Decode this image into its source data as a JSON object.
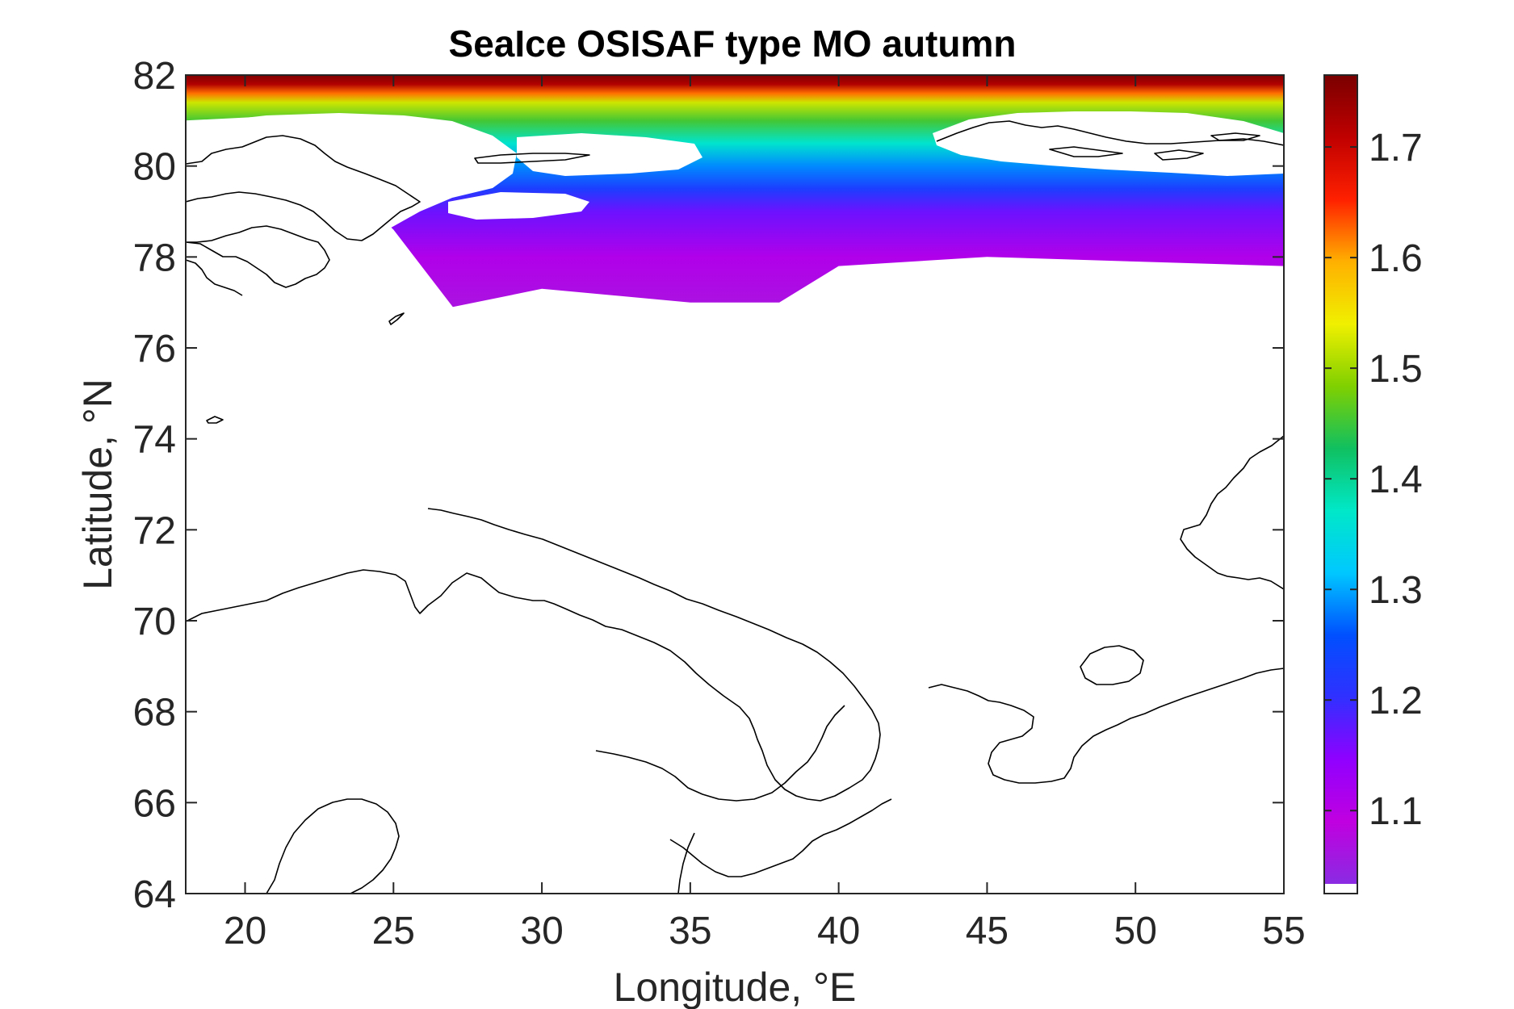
{
  "chart_data": {
    "type": "heatmap",
    "title": "SeaIce OSISAF type MO autumn",
    "xlabel": "Longitude, °E",
    "ylabel": "Latitude, °N",
    "xlim": [
      18,
      55
    ],
    "ylim": [
      64,
      82
    ],
    "xticks": [
      "20",
      "25",
      "30",
      "35",
      "40",
      "45",
      "50",
      "55"
    ],
    "yticks": [
      "64",
      "66",
      "68",
      "70",
      "72",
      "74",
      "76",
      "78",
      "80",
      "82"
    ],
    "colorbar": {
      "range": [
        1.025,
        1.765
      ],
      "ticks": [
        "1.1",
        "1.2",
        "1.3",
        "1.4",
        "1.5",
        "1.6",
        "1.7"
      ],
      "colormap": [
        "#ffffff",
        "#8a2be2",
        "#c000e0",
        "#9000ff",
        "#3030ff",
        "#0050ff",
        "#00c8ff",
        "#00e8c8",
        "#10c060",
        "#80d000",
        "#f0f000",
        "#ffb000",
        "#ff2000",
        "#c00000",
        "#7a0000"
      ]
    },
    "field_profile": {
      "description_lat_by_lon": "ice value decreases southward from ~1.76 at 82N to ~1.05 at ice edge",
      "ice_edge_lat": [
        {
          "lon": 18,
          "lat": 81.0
        },
        {
          "lon": 21,
          "lat": 81.1
        },
        {
          "lon": 25,
          "lat": 78.6
        },
        {
          "lon": 27,
          "lat": 76.9
        },
        {
          "lon": 30,
          "lat": 77.3
        },
        {
          "lon": 35,
          "lat": 77.0
        },
        {
          "lon": 38,
          "lat": 77.0
        },
        {
          "lon": 40,
          "lat": 77.8
        },
        {
          "lon": 45,
          "lat": 78.0
        },
        {
          "lon": 50,
          "lat": 77.9
        },
        {
          "lon": 55,
          "lat": 77.8
        }
      ],
      "value_profile": [
        {
          "lat": 82.0,
          "value": 1.76
        },
        {
          "lat": 81.8,
          "value": 1.72
        },
        {
          "lat": 81.6,
          "value": 1.62
        },
        {
          "lat": 81.4,
          "value": 1.52
        },
        {
          "lat": 81.0,
          "value": 1.45
        },
        {
          "lat": 80.5,
          "value": 1.36
        },
        {
          "lat": 80.0,
          "value": 1.28
        },
        {
          "lat": 79.5,
          "value": 1.22
        },
        {
          "lat": 79.0,
          "value": 1.16
        },
        {
          "lat": 78.0,
          "value": 1.1
        },
        {
          "lat": 77.0,
          "value": 1.06
        }
      ]
    }
  }
}
